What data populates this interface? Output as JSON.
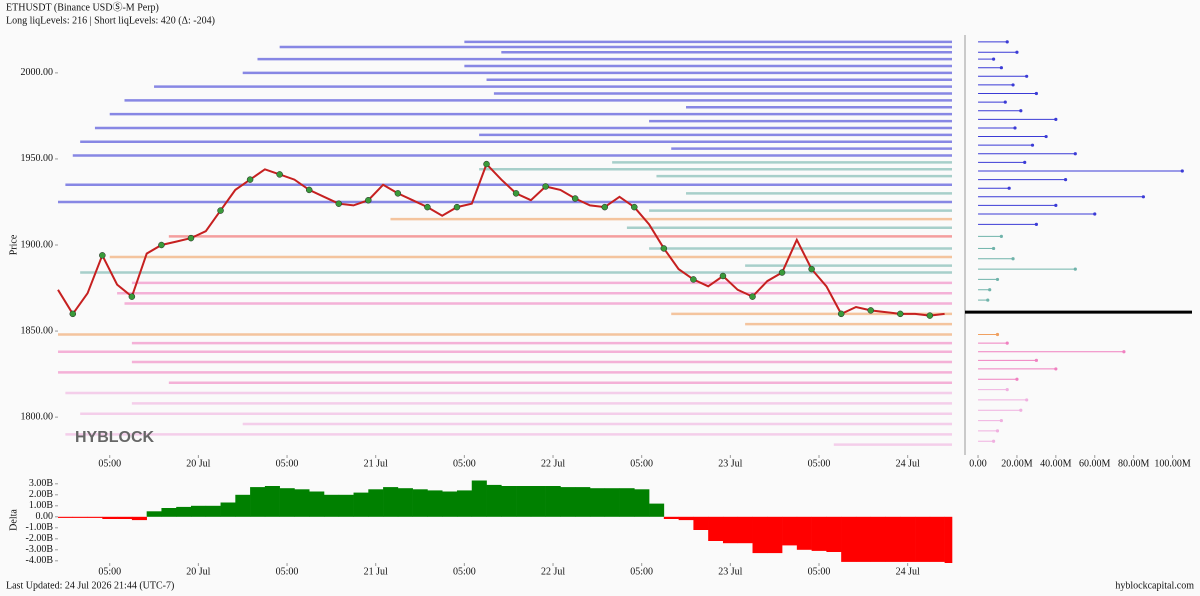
{
  "header": {
    "title": "ETHUSDT (Binance USDⓈ-M Perp)",
    "subtitle": "Long liqLevels: 216 | Short liqLevels: 420 (Δ: -204)"
  },
  "watermark": "HYBLOCK",
  "footer": {
    "updated": "Last Updated: 24 Jul 2026 21:44 (UTC-7)",
    "site": "hyblockcapital.com"
  },
  "chart_data": [
    {
      "type": "line",
      "y_label": "Price",
      "color": "#c62020",
      "marker_color": "#3a9a3a",
      "x": [
        5,
        7,
        9,
        11,
        13,
        15,
        17,
        19,
        21,
        23,
        25,
        27,
        29,
        31,
        33,
        35,
        37,
        39,
        41,
        43,
        45,
        47,
        49,
        51,
        53,
        55,
        57,
        59,
        61,
        63,
        65,
        67,
        69,
        71,
        73,
        75,
        77,
        79,
        81,
        83,
        85,
        87,
        89,
        91,
        93,
        95,
        97,
        99,
        101,
        103,
        105,
        107,
        109,
        111,
        113,
        115,
        117,
        119,
        121,
        123,
        125
      ],
      "values": [
        1874,
        1860,
        1872,
        1894,
        1877,
        1870,
        1895,
        1900,
        1902,
        1904,
        1908,
        1920,
        1932,
        1938,
        1944,
        1941,
        1938,
        1932,
        1928,
        1924,
        1923,
        1926,
        1935,
        1930,
        1926,
        1922,
        1917,
        1922,
        1924,
        1947,
        1938,
        1930,
        1926,
        1934,
        1932,
        1927,
        1923,
        1922,
        1928,
        1922,
        1912,
        1898,
        1886,
        1880,
        1876,
        1882,
        1874,
        1870,
        1879,
        1884,
        1903,
        1886,
        1876,
        1860,
        1864,
        1862,
        1861,
        1860,
        1860,
        1859,
        1860
      ],
      "levels": {
        "prices": [
          2018,
          2015,
          2012,
          2008,
          2004,
          2000,
          1996,
          1992,
          1988,
          1984,
          1980,
          1976,
          1972,
          1968,
          1964,
          1960,
          1956,
          1952,
          1948,
          1944,
          1940,
          1935,
          1930,
          1925,
          1920,
          1915,
          1910,
          1905,
          1898,
          1893,
          1888,
          1884,
          1878,
          1872,
          1866,
          1860,
          1854,
          1848,
          1843,
          1838,
          1832,
          1826,
          1820,
          1814,
          1808,
          1802,
          1796,
          1790,
          1784
        ],
        "starts": [
          60,
          35,
          65,
          32,
          60,
          30,
          63,
          18,
          64,
          14,
          90,
          12,
          85,
          10,
          62,
          8,
          88,
          7,
          80,
          62,
          86,
          6,
          90,
          5,
          85,
          50,
          82,
          20,
          85,
          12,
          98,
          8,
          15,
          13,
          14,
          88,
          98,
          5,
          15,
          5,
          15,
          5,
          20,
          6,
          15,
          8,
          30,
          6,
          110
        ],
        "colors": [
          "#3b3bd6",
          "#3b3bd6",
          "#3b3bd6",
          "#3b3bd6",
          "#3b3bd6",
          "#3b3bd6",
          "#3b3bd6",
          "#3b3bd6",
          "#3b3bd6",
          "#3b3bd6",
          "#3b3bd6",
          "#3b3bd6",
          "#3b3bd6",
          "#3b3bd6",
          "#3b3bd6",
          "#3b3bd6",
          "#3b3bd6",
          "#3b3bd6",
          "#6fb3aa",
          "#6fb3aa",
          "#6fb3aa",
          "#3b3bd6",
          "#6fb3aa",
          "#3b3bd6",
          "#6fb3aa",
          "#f0a060",
          "#6fb3aa",
          "#f06060",
          "#6fb3aa",
          "#f0a060",
          "#6fb3aa",
          "#6fb3aa",
          "#f080c0",
          "#f080c0",
          "#f080c0",
          "#f0a060",
          "#f0a060",
          "#f0a060",
          "#f080c0",
          "#f080c0",
          "#f080c0",
          "#f080c0",
          "#f080c0",
          "#f0b0e0",
          "#f0b0e0",
          "#f0b0e0",
          "#f0b0e0",
          "#f0b0e0",
          "#f0b0e0"
        ]
      },
      "xlim": [
        5,
        126
      ],
      "ylim": [
        1778,
        2022
      ],
      "xticks": [
        {
          "value": 12,
          "label": "05:00"
        },
        {
          "value": 24,
          "label": "20 Jul"
        },
        {
          "value": 36,
          "label": "05:00"
        },
        {
          "value": 48,
          "label": "21 Jul"
        },
        {
          "value": 60,
          "label": "05:00"
        },
        {
          "value": 72,
          "label": "22 Jul"
        },
        {
          "value": 84,
          "label": "05:00"
        },
        {
          "value": 96,
          "label": "23 Jul"
        },
        {
          "value": 108,
          "label": "05:00"
        },
        {
          "value": 120,
          "label": "24 Jul"
        }
      ],
      "yticks": [
        {
          "value": 1800,
          "label": "1800.00"
        },
        {
          "value": 1850,
          "label": "1850.00"
        },
        {
          "value": 1900,
          "label": "1900.00"
        },
        {
          "value": 1950,
          "label": "1950.00"
        },
        {
          "value": 2000,
          "label": "2000.00"
        }
      ]
    },
    {
      "type": "barh",
      "current_price": 1861,
      "y": [
        2018,
        2012,
        2008,
        2003,
        1998,
        1993,
        1988,
        1983,
        1978,
        1973,
        1968,
        1963,
        1958,
        1953,
        1948,
        1943,
        1938,
        1933,
        1928,
        1923,
        1918,
        1912,
        1905,
        1898,
        1892,
        1886,
        1880,
        1874,
        1868,
        1848,
        1843,
        1838,
        1833,
        1828,
        1822,
        1816,
        1810,
        1804,
        1798,
        1792,
        1786
      ],
      "values": [
        15000000,
        20000000,
        8000000,
        12000000,
        25000000,
        18000000,
        30000000,
        14000000,
        22000000,
        40000000,
        19000000,
        35000000,
        28000000,
        50000000,
        24000000,
        105000000,
        45000000,
        16000000,
        85000000,
        40000000,
        60000000,
        30000000,
        12000000,
        8000000,
        18000000,
        50000000,
        10000000,
        6000000,
        5000000,
        10000000,
        15000000,
        75000000,
        30000000,
        40000000,
        20000000,
        15000000,
        25000000,
        22000000,
        12000000,
        10000000,
        8000000
      ],
      "colors": [
        "#3b3bd6",
        "#3b3bd6",
        "#3b3bd6",
        "#3b3bd6",
        "#3b3bd6",
        "#3b3bd6",
        "#3b3bd6",
        "#3b3bd6",
        "#3b3bd6",
        "#3b3bd6",
        "#3b3bd6",
        "#3b3bd6",
        "#3b3bd6",
        "#3b3bd6",
        "#3b3bd6",
        "#3b3bd6",
        "#3b3bd6",
        "#3b3bd6",
        "#3b3bd6",
        "#3b3bd6",
        "#3b3bd6",
        "#3b3bd6",
        "#6fb3aa",
        "#6fb3aa",
        "#6fb3aa",
        "#6fb3aa",
        "#6fb3aa",
        "#6fb3aa",
        "#6fb3aa",
        "#f0a060",
        "#f080c0",
        "#f080c0",
        "#f080c0",
        "#f080c0",
        "#f080c0",
        "#f0b0e0",
        "#f0b0e0",
        "#f0b0e0",
        "#f0b0e0",
        "#f0b0e0",
        "#f0b0e0"
      ],
      "xlim": [
        -6700000,
        110000000
      ],
      "ylim": [
        1778,
        2022
      ],
      "xticks": [
        {
          "value": 0,
          "label": "0.00"
        },
        {
          "value": 20000000,
          "label": "20.00M"
        },
        {
          "value": 40000000,
          "label": "40.00M"
        },
        {
          "value": 60000000,
          "label": "60.00M"
        },
        {
          "value": 80000000,
          "label": "80.00M"
        },
        {
          "value": 100000000,
          "label": "100.00M"
        }
      ]
    },
    {
      "type": "bar",
      "y_label": "Delta",
      "positive_color": "#008000",
      "negative_color": "#ff0000",
      "x": [
        5,
        7,
        9,
        11,
        13,
        15,
        17,
        19,
        21,
        23,
        25,
        27,
        29,
        31,
        33,
        35,
        37,
        39,
        41,
        43,
        45,
        47,
        49,
        51,
        53,
        55,
        57,
        59,
        61,
        63,
        65,
        67,
        69,
        71,
        73,
        75,
        77,
        79,
        81,
        83,
        85,
        87,
        89,
        91,
        93,
        95,
        97,
        99,
        101,
        103,
        105,
        107,
        109,
        111,
        113,
        115,
        117,
        119,
        121,
        123,
        125
      ],
      "values": [
        -100000000,
        -100000000,
        -100000000,
        -200000000,
        -200000000,
        -300000000,
        500000000,
        800000000,
        900000000,
        1000000000,
        1000000000,
        1300000000,
        2000000000,
        2700000000,
        2800000000,
        2600000000,
        2500000000,
        2300000000,
        2000000000,
        2000000000,
        2200000000,
        2500000000,
        2700000000,
        2600000000,
        2500000000,
        2400000000,
        2300000000,
        2400000000,
        3300000000,
        2900000000,
        2800000000,
        2800000000,
        2800000000,
        2800000000,
        2700000000,
        2700000000,
        2600000000,
        2600000000,
        2600000000,
        2500000000,
        1200000000,
        -200000000,
        -300000000,
        -1200000000,
        -2200000000,
        -2400000000,
        -2400000000,
        -3300000000,
        -3300000000,
        -2600000000,
        -3000000000,
        -3100000000,
        -3200000000,
        -4100000000,
        -4100000000,
        -4100000000,
        -4100000000,
        -4100000000,
        -4100000000,
        -4100000000,
        -4200000000
      ],
      "xlim": [
        5,
        126
      ],
      "ylim": [
        -4200000000,
        3800000000
      ],
      "xticks": [
        {
          "value": 12,
          "label": "05:00"
        },
        {
          "value": 24,
          "label": "20 Jul"
        },
        {
          "value": 36,
          "label": "05:00"
        },
        {
          "value": 48,
          "label": "21 Jul"
        },
        {
          "value": 60,
          "label": "05:00"
        },
        {
          "value": 72,
          "label": "22 Jul"
        },
        {
          "value": 84,
          "label": "05:00"
        },
        {
          "value": 96,
          "label": "23 Jul"
        },
        {
          "value": 108,
          "label": "05:00"
        },
        {
          "value": 120,
          "label": "24 Jul"
        }
      ],
      "yticks": [
        {
          "value": -4000000000,
          "label": "-4.00B"
        },
        {
          "value": -3000000000,
          "label": "-3.00B"
        },
        {
          "value": -2000000000,
          "label": "-2.00B"
        },
        {
          "value": -1000000000,
          "label": "-1.00B"
        },
        {
          "value": 0,
          "label": "0.00"
        },
        {
          "value": 1000000000,
          "label": "1.00B"
        },
        {
          "value": 2000000000,
          "label": "2.00B"
        },
        {
          "value": 3000000000,
          "label": "3.00B"
        }
      ]
    }
  ]
}
